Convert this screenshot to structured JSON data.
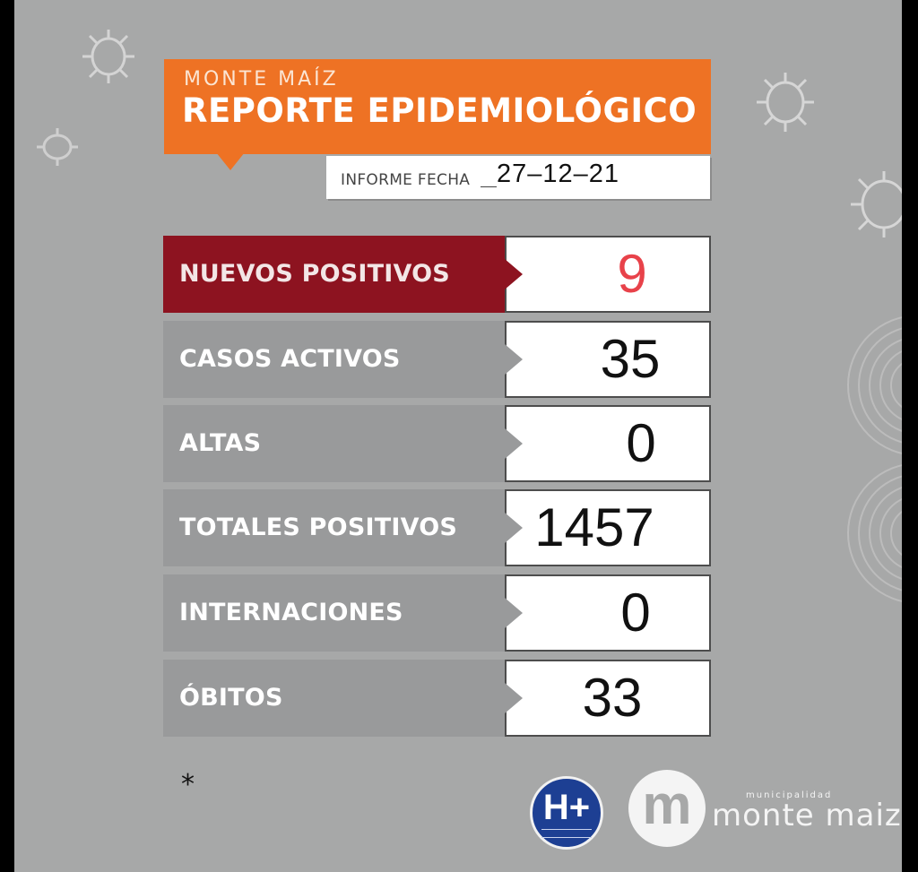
{
  "header": {
    "subtitle": "MONTE MAÍZ",
    "title": "REPORTE EPIDEMIOLÓGICO",
    "date_label": "INFORME FECHA",
    "date_value": "27–12–21"
  },
  "rows": [
    {
      "label": "NUEVOS POSITIVOS",
      "value": "9"
    },
    {
      "label": "CASOS ACTIVOS",
      "value": "35"
    },
    {
      "label": "ALTAS",
      "value": "0"
    },
    {
      "label": "TOTALES POSITIVOS",
      "value": "1457"
    },
    {
      "label": "INTERNACIONES",
      "value": "0"
    },
    {
      "label": "ÓBITOS",
      "value": "33"
    }
  ],
  "footnote": "*",
  "logos": {
    "hospital_mark": "H+",
    "municipality_small": "municipalidad",
    "municipality_name": "monte maiz",
    "municipality_letter": "m"
  },
  "colors": {
    "background": "#a7a8a8",
    "header_orange": "#ee7224",
    "highlight_red": "#8d1320",
    "highlight_number": "#e8424a",
    "hospital_blue": "#1d3f93"
  },
  "icons": [
    "virus-icon",
    "concentric-circles-decoration"
  ]
}
